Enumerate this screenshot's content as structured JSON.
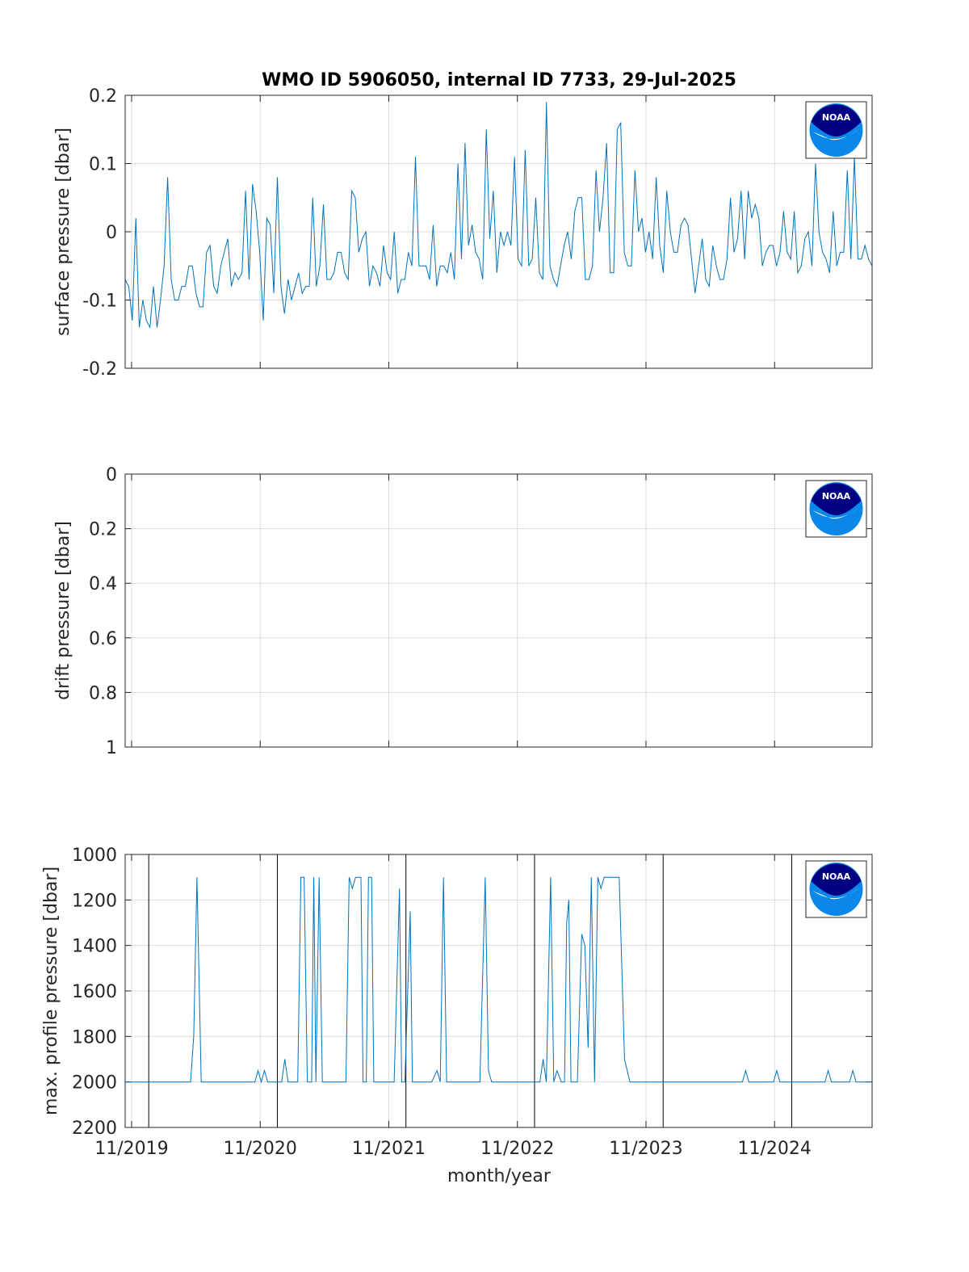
{
  "figure": {
    "title": "WMO ID 5906050, internal ID 7733, 29-Jul-2025",
    "xlabel": "month/year",
    "x_ticks": [
      "11/2019",
      "11/2020",
      "11/2021",
      "11/2022",
      "11/2023",
      "11/2024"
    ]
  },
  "logo": {
    "text": "NOAA",
    "colors": {
      "dark": "#000080",
      "light": "#0a87e8"
    }
  },
  "colors": {
    "series": "#0072bd",
    "marker_lines": "#000000",
    "grid": "#dcdcdc",
    "axes": "#262626"
  },
  "chart_data": [
    {
      "type": "line",
      "ylabel": "surface pressure [dbar]",
      "ylim": [
        -0.2,
        0.2
      ],
      "yticks": [
        "-0.2",
        "-0.1",
        "0",
        "0.1",
        "0.2"
      ],
      "y_reversed": false,
      "grid": true,
      "x_unit": "months since 11/2019 (tick = Nov of each year)",
      "xlim": [
        -0.6,
        69.1
      ],
      "series": [
        {
          "values": [
            -0.07,
            -0.08,
            -0.13,
            0.02,
            -0.14,
            -0.1,
            -0.13,
            -0.14,
            -0.08,
            -0.14,
            -0.1,
            -0.05,
            0.08,
            -0.07,
            -0.1,
            -0.1,
            -0.08,
            -0.08,
            -0.05,
            -0.05,
            -0.09,
            -0.11,
            -0.11,
            -0.03,
            -0.02,
            -0.08,
            -0.09,
            -0.05,
            -0.03,
            -0.01,
            -0.08,
            -0.06,
            -0.07,
            -0.06,
            0.06,
            -0.07,
            0.07,
            0.03,
            -0.03,
            -0.13,
            0.02,
            0.01,
            -0.09,
            0.08,
            -0.08,
            -0.12,
            -0.07,
            -0.1,
            -0.08,
            -0.06,
            -0.09,
            -0.08,
            -0.08,
            0.05,
            -0.08,
            -0.05,
            0.04,
            -0.07,
            -0.07,
            -0.06,
            -0.03,
            -0.03,
            -0.06,
            -0.07,
            0.06,
            0.05,
            -0.03,
            -0.01,
            0,
            -0.08,
            -0.05,
            -0.06,
            -0.08,
            -0.02,
            -0.06,
            -0.07,
            0,
            -0.09,
            -0.07,
            -0.07,
            -0.03,
            -0.05,
            0.11,
            -0.05,
            -0.05,
            -0.05,
            -0.07,
            0.01,
            -0.08,
            -0.05,
            -0.05,
            -0.06,
            -0.03,
            -0.07,
            0.1,
            -0.04,
            0.13,
            -0.02,
            0.01,
            -0.03,
            -0.04,
            -0.07,
            0.15,
            -0.01,
            0.06,
            -0.06,
            0,
            -0.02,
            0,
            -0.02,
            0.11,
            -0.04,
            -0.05,
            0.12,
            -0.05,
            -0.04,
            0.05,
            -0.06,
            -0.07,
            0.19,
            -0.05,
            -0.07,
            -0.08,
            -0.05,
            -0.02,
            0,
            -0.04,
            0.03,
            0.05,
            0.05,
            -0.07,
            -0.07,
            -0.05,
            0.09,
            0,
            0.05,
            0.13,
            -0.06,
            -0.06,
            0.15,
            0.16,
            -0.03,
            -0.05,
            -0.05,
            0.09,
            0,
            0.02,
            -0.03,
            0,
            -0.04,
            0.08,
            -0.02,
            -0.06,
            0.06,
            0,
            -0.03,
            -0.03,
            0.01,
            0.02,
            0.01,
            -0.04,
            -0.09,
            -0.05,
            -0.01,
            -0.07,
            -0.08,
            -0.02,
            -0.05,
            -0.07,
            -0.07,
            -0.04,
            0.05,
            -0.03,
            -0.01,
            0.06,
            -0.04,
            0.06,
            0.02,
            0.04,
            0.02,
            -0.05,
            -0.03,
            -0.02,
            -0.02,
            -0.05,
            -0.03,
            0.03,
            -0.03,
            -0.04,
            0.03,
            -0.06,
            -0.05,
            -0.01,
            0,
            -0.05,
            0.1,
            0,
            -0.03,
            -0.04,
            -0.06,
            0.03,
            -0.05,
            -0.03,
            -0.03,
            0.09,
            -0.04,
            0.11,
            -0.04,
            -0.04,
            -0.02,
            -0.04,
            -0.05
          ]
        }
      ]
    },
    {
      "type": "line",
      "ylabel": "drift pressure [dbar]",
      "ylim": [
        0,
        1
      ],
      "yticks": [
        "0",
        "0.2",
        "0.4",
        "0.6",
        "0.8",
        "1"
      ],
      "y_reversed": true,
      "grid": true,
      "xlim": [
        -0.6,
        69.1
      ],
      "series": []
    },
    {
      "type": "line",
      "ylabel": "max. profile pressure [dbar]",
      "ylim": [
        1000,
        2200
      ],
      "yticks": [
        "1000",
        "1200",
        "1400",
        "1600",
        "1800",
        "2000",
        "2200"
      ],
      "y_reversed": true,
      "grid": true,
      "xlim": [
        -0.6,
        69.1
      ],
      "vertical_markers_months": [
        1.6,
        13.6,
        25.6,
        37.6,
        49.6,
        61.6
      ],
      "series": [
        {
          "points": [
            [
              -0.6,
              2000
            ],
            [
              0.5,
              2000
            ],
            [
              1,
              2000
            ],
            [
              2,
              2000
            ],
            [
              3,
              2000
            ],
            [
              3.5,
              2000
            ],
            [
              4.5,
              2000
            ],
            [
              5.5,
              2000
            ],
            [
              5.8,
              1800
            ],
            [
              6.1,
              1100
            ],
            [
              6.5,
              2000
            ],
            [
              8,
              2000
            ],
            [
              9,
              2000
            ],
            [
              10,
              2000
            ],
            [
              11,
              2000
            ],
            [
              11.5,
              2000
            ],
            [
              11.8,
              1950
            ],
            [
              12.1,
              2000
            ],
            [
              12.4,
              1950
            ],
            [
              12.7,
              2000
            ],
            [
              13.5,
              2000
            ],
            [
              14,
              2000
            ],
            [
              14.3,
              1900
            ],
            [
              14.6,
              2000
            ],
            [
              15.5,
              2000
            ],
            [
              15.8,
              1100
            ],
            [
              16.1,
              1100
            ],
            [
              16.4,
              2000
            ],
            [
              16.8,
              2000
            ],
            [
              17,
              1100
            ],
            [
              17.2,
              2000
            ],
            [
              17.5,
              1100
            ],
            [
              17.8,
              2000
            ],
            [
              19,
              2000
            ],
            [
              20,
              2000
            ],
            [
              20.3,
              1100
            ],
            [
              20.6,
              1150
            ],
            [
              20.9,
              1100
            ],
            [
              21.4,
              1100
            ],
            [
              21.6,
              2000
            ],
            [
              21.9,
              2000
            ],
            [
              22.1,
              1100
            ],
            [
              22.4,
              1100
            ],
            [
              22.6,
              2000
            ],
            [
              23.5,
              2000
            ],
            [
              24.5,
              2000
            ],
            [
              25,
              1150
            ],
            [
              25.2,
              2000
            ],
            [
              25.5,
              2000
            ],
            [
              26,
              1250
            ],
            [
              26.2,
              2000
            ],
            [
              27,
              2000
            ],
            [
              28,
              2000
            ],
            [
              28.5,
              1950
            ],
            [
              28.8,
              2000
            ],
            [
              29.1,
              1100
            ],
            [
              29.4,
              2000
            ],
            [
              30.5,
              2000
            ],
            [
              31.5,
              2000
            ],
            [
              32.5,
              2000
            ],
            [
              33,
              1100
            ],
            [
              33.3,
              1950
            ],
            [
              33.6,
              2000
            ],
            [
              35,
              2000
            ],
            [
              36,
              2000
            ],
            [
              37,
              2000
            ],
            [
              38.1,
              2000
            ],
            [
              38.4,
              1900
            ],
            [
              38.7,
              2000
            ],
            [
              39.1,
              1100
            ],
            [
              39.4,
              2000
            ],
            [
              39.7,
              1950
            ],
            [
              40.1,
              2000
            ],
            [
              40.4,
              2000
            ],
            [
              40.6,
              1300
            ],
            [
              40.8,
              1200
            ],
            [
              41,
              2000
            ],
            [
              41.6,
              2000
            ],
            [
              42,
              1350
            ],
            [
              42.3,
              1400
            ],
            [
              42.6,
              1850
            ],
            [
              42.9,
              1100
            ],
            [
              43.2,
              2000
            ],
            [
              43.5,
              1100
            ],
            [
              43.8,
              1150
            ],
            [
              44.1,
              1100
            ],
            [
              45.5,
              1100
            ],
            [
              46,
              1900
            ],
            [
              46.5,
              2000
            ],
            [
              48,
              2000
            ],
            [
              50,
              2000
            ],
            [
              52,
              2000
            ],
            [
              53,
              2000
            ],
            [
              55,
              2000
            ],
            [
              57,
              2000
            ],
            [
              57.3,
              1950
            ],
            [
              57.6,
              2000
            ],
            [
              58.5,
              2000
            ],
            [
              59.9,
              2000
            ],
            [
              60.2,
              1950
            ],
            [
              60.5,
              2000
            ],
            [
              61.5,
              2000
            ],
            [
              62.5,
              2000
            ],
            [
              64,
              2000
            ],
            [
              64.7,
              2000
            ],
            [
              65,
              1950
            ],
            [
              65.3,
              2000
            ],
            [
              66.5,
              2000
            ],
            [
              67,
              2000
            ],
            [
              67.3,
              1950
            ],
            [
              67.6,
              2000
            ],
            [
              68.3,
              2000
            ],
            [
              69.1,
              2000
            ]
          ]
        }
      ]
    }
  ]
}
